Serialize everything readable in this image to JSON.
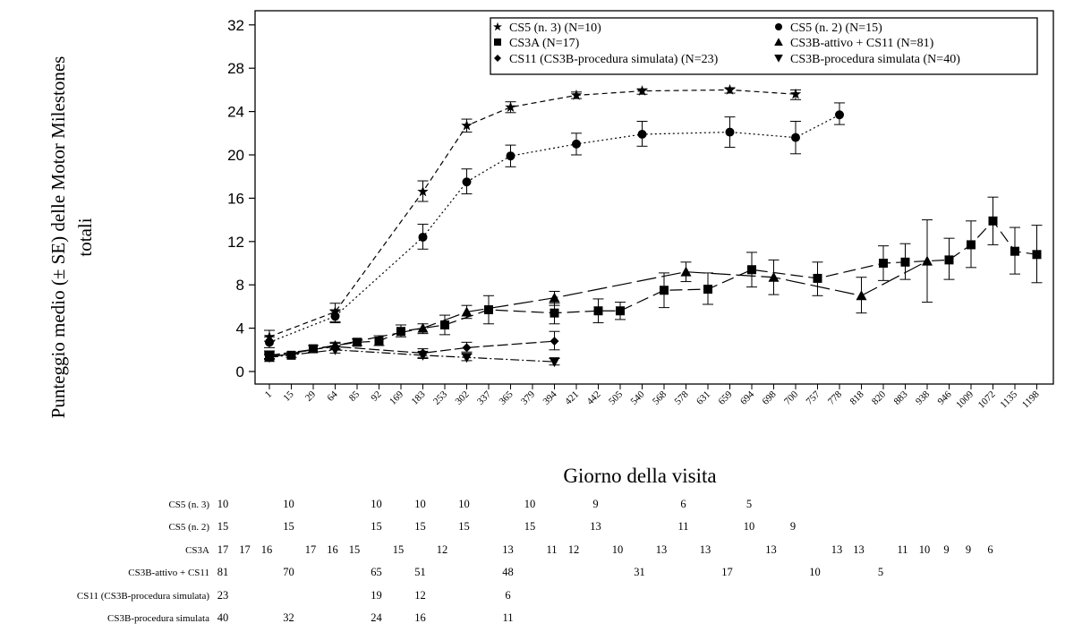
{
  "chart_data": {
    "type": "line",
    "title": "",
    "ylabel_lines": [
      "Punteggio medio (± SE) delle Motor Milestones",
      "totali"
    ],
    "xlabel": "Giorno della visita",
    "ylim": [
      0,
      32
    ],
    "yticks": [
      "0",
      "4",
      "8",
      "12",
      "16",
      "20",
      "24",
      "28",
      "32"
    ],
    "categories": [
      "1",
      "15",
      "29",
      "64",
      "85",
      "92",
      "169",
      "183",
      "253",
      "302",
      "337",
      "365",
      "379",
      "394",
      "421",
      "442",
      "505",
      "540",
      "568",
      "578",
      "631",
      "659",
      "694",
      "698",
      "700",
      "757",
      "778",
      "818",
      "820",
      "883",
      "938",
      "946",
      "1009",
      "1072",
      "1135",
      "1198"
    ],
    "grid": false,
    "legend_position": "top-right inside",
    "series": [
      {
        "name": "CS5 (n. 3) (N=10)",
        "marker": "star",
        "dash": "6,4",
        "points": [
          {
            "x": "1",
            "y": 3.2,
            "lo": 2.8,
            "hi": 3.8
          },
          {
            "x": "64",
            "y": 5.5,
            "lo": 4.6,
            "hi": 6.3
          },
          {
            "x": "183",
            "y": 16.6,
            "lo": 15.7,
            "hi": 17.6
          },
          {
            "x": "302",
            "y": 22.7,
            "lo": 22.1,
            "hi": 23.3
          },
          {
            "x": "365",
            "y": 24.4,
            "lo": 23.9,
            "hi": 24.9
          },
          {
            "x": "421",
            "y": 25.5,
            "lo": 25.2,
            "hi": 25.8
          },
          {
            "x": "540",
            "y": 25.9,
            "lo": 25.6,
            "hi": 26.1
          },
          {
            "x": "659",
            "y": 26.0,
            "lo": 25.7,
            "hi": 26.2
          },
          {
            "x": "700",
            "y": 25.6,
            "lo": 25.1,
            "hi": 26.0
          }
        ]
      },
      {
        "name": "CS5 (n. 2) (N=15)",
        "marker": "circle",
        "dash": "2,3",
        "points": [
          {
            "x": "1",
            "y": 2.7,
            "lo": 2.2,
            "hi": 3.2
          },
          {
            "x": "64",
            "y": 5.1,
            "lo": 4.5,
            "hi": 5.7
          },
          {
            "x": "183",
            "y": 12.4,
            "lo": 11.3,
            "hi": 13.6
          },
          {
            "x": "302",
            "y": 17.5,
            "lo": 16.4,
            "hi": 18.7
          },
          {
            "x": "365",
            "y": 19.9,
            "lo": 18.9,
            "hi": 20.9
          },
          {
            "x": "421",
            "y": 21.0,
            "lo": 20.0,
            "hi": 22.0
          },
          {
            "x": "540",
            "y": 21.9,
            "lo": 20.8,
            "hi": 23.1
          },
          {
            "x": "659",
            "y": 22.1,
            "lo": 20.7,
            "hi": 23.5
          },
          {
            "x": "700",
            "y": 21.6,
            "lo": 20.1,
            "hi": 23.1
          },
          {
            "x": "778",
            "y": 23.7,
            "lo": 22.8,
            "hi": 24.8
          }
        ]
      },
      {
        "name": "CS3A (N=17)",
        "marker": "square",
        "dash": "14,6",
        "points": [
          {
            "x": "1",
            "y": 1.5,
            "lo": 1.2,
            "hi": 1.9
          },
          {
            "x": "15",
            "y": 1.5,
            "lo": 1.3,
            "hi": 1.7
          },
          {
            "x": "29",
            "y": 2.1,
            "lo": 1.8,
            "hi": 2.4
          },
          {
            "x": "85",
            "y": 2.7,
            "lo": 2.4,
            "hi": 3.0
          },
          {
            "x": "92",
            "y": 2.8,
            "lo": 2.4,
            "hi": 3.3
          },
          {
            "x": "169",
            "y": 3.7,
            "lo": 3.2,
            "hi": 4.3
          },
          {
            "x": "253",
            "y": 4.3,
            "lo": 3.4,
            "hi": 5.2
          },
          {
            "x": "337",
            "y": 5.7,
            "lo": 4.4,
            "hi": 7.0
          },
          {
            "x": "394",
            "y": 5.4,
            "lo": 4.4,
            "hi": 6.3
          },
          {
            "x": "442",
            "y": 5.6,
            "lo": 4.5,
            "hi": 6.7
          },
          {
            "x": "505",
            "y": 5.6,
            "lo": 4.8,
            "hi": 6.4
          },
          {
            "x": "568",
            "y": 7.5,
            "lo": 5.9,
            "hi": 9.1
          },
          {
            "x": "631",
            "y": 7.6,
            "lo": 6.2,
            "hi": 9.1
          },
          {
            "x": "694",
            "y": 9.4,
            "lo": 7.8,
            "hi": 11.0
          },
          {
            "x": "757",
            "y": 8.6,
            "lo": 7.0,
            "hi": 10.1
          },
          {
            "x": "820",
            "y": 10.0,
            "lo": 8.4,
            "hi": 11.6
          },
          {
            "x": "883",
            "y": 10.1,
            "lo": 8.5,
            "hi": 11.8
          },
          {
            "x": "946",
            "y": 10.3,
            "lo": 8.5,
            "hi": 12.3
          },
          {
            "x": "1009",
            "y": 11.7,
            "lo": 9.6,
            "hi": 13.9
          },
          {
            "x": "1072",
            "y": 13.9,
            "lo": 11.7,
            "hi": 16.1
          },
          {
            "x": "1135",
            "y": 11.1,
            "lo": 9.0,
            "hi": 13.3
          },
          {
            "x": "1198",
            "y": 10.8,
            "lo": 8.2,
            "hi": 13.5
          }
        ]
      },
      {
        "name": "CS3B-attivo + CS11 (N=81)",
        "marker": "triangle-up",
        "dash": "22,6",
        "points": [
          {
            "x": "1",
            "y": 1.3,
            "lo": 1.1,
            "hi": 1.6
          },
          {
            "x": "64",
            "y": 2.4,
            "lo": 2.1,
            "hi": 2.7
          },
          {
            "x": "183",
            "y": 4.0,
            "lo": 3.5,
            "hi": 4.4
          },
          {
            "x": "302",
            "y": 5.5,
            "lo": 4.9,
            "hi": 6.1
          },
          {
            "x": "394",
            "y": 6.8,
            "lo": 6.1,
            "hi": 7.4
          },
          {
            "x": "578",
            "y": 9.2,
            "lo": 8.3,
            "hi": 10.1
          },
          {
            "x": "698",
            "y": 8.7,
            "lo": 7.1,
            "hi": 10.3
          },
          {
            "x": "818",
            "y": 7.0,
            "lo": 5.4,
            "hi": 8.7
          },
          {
            "x": "938",
            "y": 10.2,
            "lo": 6.4,
            "hi": 14.0
          }
        ]
      },
      {
        "name": "CS11 (CS3B-procedura simulata) (N=23)",
        "marker": "diamond",
        "dash": "12,4",
        "points": [
          {
            "x": "1",
            "y": 1.5,
            "lo": 1.2,
            "hi": 1.8
          },
          {
            "x": "64",
            "y": 2.3,
            "lo": 2.0,
            "hi": 2.6
          },
          {
            "x": "183",
            "y": 1.7,
            "lo": 1.3,
            "hi": 2.1
          },
          {
            "x": "302",
            "y": 2.2,
            "lo": 1.8,
            "hi": 2.7
          },
          {
            "x": "394",
            "y": 2.8,
            "lo": 2.0,
            "hi": 3.7
          }
        ]
      },
      {
        "name": "CS3B-procedura simulata (N=40)",
        "marker": "triangle-down",
        "dash": "10,3,2,3",
        "points": [
          {
            "x": "1",
            "y": 1.3,
            "lo": 1.1,
            "hi": 1.5
          },
          {
            "x": "64",
            "y": 2.0,
            "lo": 1.7,
            "hi": 2.3
          },
          {
            "x": "183",
            "y": 1.5,
            "lo": 1.2,
            "hi": 1.8
          },
          {
            "x": "302",
            "y": 1.3,
            "lo": 1.0,
            "hi": 1.6
          },
          {
            "x": "394",
            "y": 0.9,
            "lo": 0.6,
            "hi": 1.2
          }
        ]
      }
    ],
    "risk_table": [
      {
        "label": "CS5 (n. 3)",
        "values": [
          [
            "1",
            "10"
          ],
          [
            "64",
            "10"
          ],
          [
            "183",
            "10"
          ],
          [
            "302",
            "10"
          ],
          [
            "365",
            "10"
          ],
          [
            "421",
            "10"
          ],
          [
            "540",
            "9"
          ],
          [
            "659",
            "6"
          ],
          [
            "700",
            "5"
          ]
        ]
      },
      {
        "label": "CS5 (n. 2)",
        "values": [
          [
            "1",
            "15"
          ],
          [
            "64",
            "15"
          ],
          [
            "183",
            "15"
          ],
          [
            "302",
            "15"
          ],
          [
            "365",
            "15"
          ],
          [
            "421",
            "15"
          ],
          [
            "540",
            "13"
          ],
          [
            "659",
            "11"
          ],
          [
            "700",
            "10"
          ],
          [
            "778",
            "9"
          ]
        ]
      },
      {
        "label": "CS3A",
        "values": [
          [
            "1",
            "17"
          ],
          [
            "15",
            "17"
          ],
          [
            "29",
            "16"
          ],
          [
            "85",
            "17"
          ],
          [
            "92",
            "16"
          ],
          [
            "169",
            "15"
          ],
          [
            "253",
            "15"
          ],
          [
            "337",
            "12"
          ],
          [
            "394",
            "13"
          ],
          [
            "442",
            "11"
          ],
          [
            "505",
            "12"
          ],
          [
            "568",
            "10"
          ],
          [
            "631",
            "13"
          ],
          [
            "694",
            "13"
          ],
          [
            "757",
            "13"
          ],
          [
            "820",
            "13"
          ],
          [
            "883",
            "13"
          ],
          [
            "946",
            "11"
          ],
          [
            "1009",
            "10"
          ],
          [
            "1072",
            "9"
          ],
          [
            "1135",
            "9"
          ],
          [
            "1198",
            "6"
          ]
        ]
      },
      {
        "label": "CS3B-attivo + CS11",
        "values": [
          [
            "1",
            "81"
          ],
          [
            "64",
            "70"
          ],
          [
            "183",
            "65"
          ],
          [
            "302",
            "51"
          ],
          [
            "394",
            "48"
          ],
          [
            "578",
            "31"
          ],
          [
            "698",
            "17"
          ],
          [
            "818",
            "10"
          ],
          [
            "938",
            "5"
          ]
        ]
      },
      {
        "label": "CS11 (CS3B-procedura simulata)",
        "values": [
          [
            "1",
            "23"
          ],
          [
            "183",
            "19"
          ],
          [
            "302",
            "12"
          ],
          [
            "394",
            "6"
          ]
        ]
      },
      {
        "label": "CS3B-procedura simulata",
        "values": [
          [
            "1",
            "40"
          ],
          [
            "64",
            "32"
          ],
          [
            "183",
            "24"
          ],
          [
            "302",
            "16"
          ],
          [
            "394",
            "11"
          ]
        ]
      }
    ]
  }
}
